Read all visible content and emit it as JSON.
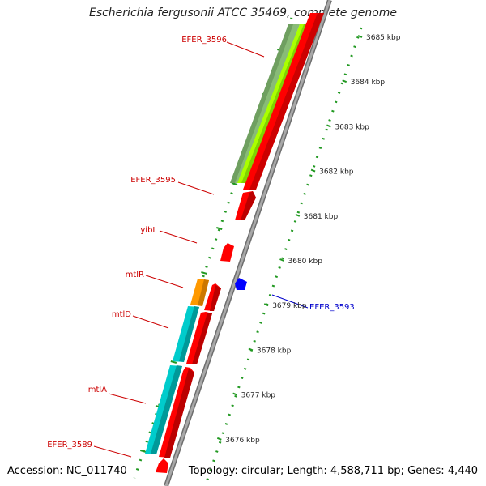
{
  "title": "Escherichia fergusonii ATCC 35469, complete genome",
  "footer": {
    "accession": "Accession: NC_011740",
    "topology": "Topology: circular; Length: 4,588,711 bp; Genes: 4,440"
  },
  "colors": {
    "gene_red": "#ff0000",
    "gene_cyan": "#00cccc",
    "gene_orange": "#ff9900",
    "gene_blue": "#0000ff",
    "gene_lime": "#aaff00",
    "gene_sage": "#88bb77",
    "backbone": "#8c8c8c",
    "tick_green": "#229922",
    "label_red": "#cc0000",
    "label_blue": "#0000cc"
  },
  "ruler": {
    "unit": "kbp",
    "ticks": [
      {
        "kbp": 3685,
        "label": "3685 kbp"
      },
      {
        "kbp": 3684,
        "label": "3684 kbp"
      },
      {
        "kbp": 3683,
        "label": "3683 kbp"
      },
      {
        "kbp": 3682,
        "label": "3682 kbp"
      },
      {
        "kbp": 3681,
        "label": "3681 kbp"
      },
      {
        "kbp": 3680,
        "label": "3680 kbp"
      },
      {
        "kbp": 3679,
        "label": "3679 kbp"
      },
      {
        "kbp": 3678,
        "label": "3678 kbp"
      },
      {
        "kbp": 3677,
        "label": "3677 kbp"
      },
      {
        "kbp": 3676,
        "label": "3676 kbp"
      }
    ]
  },
  "gene_labels": [
    {
      "name": "EFER_3596",
      "color": "label_red"
    },
    {
      "name": "EFER_3595",
      "color": "label_red"
    },
    {
      "name": "yibL",
      "color": "label_red"
    },
    {
      "name": "mtlR",
      "color": "label_red"
    },
    {
      "name": "mtlD",
      "color": "label_red"
    },
    {
      "name": "mtlA",
      "color": "label_red"
    },
    {
      "name": "EFER_3589",
      "color": "label_red"
    },
    {
      "name": "EFER_3593",
      "color": "label_blue"
    }
  ]
}
